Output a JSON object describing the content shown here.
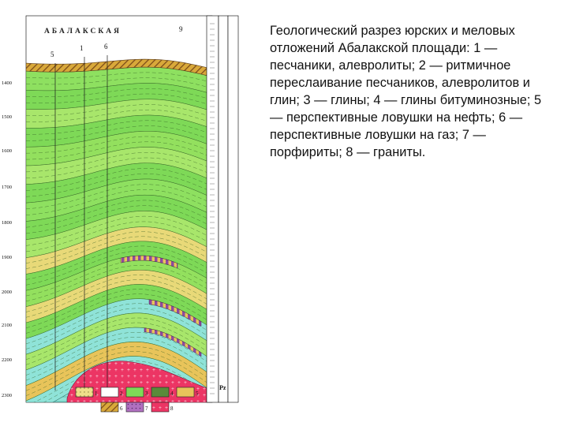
{
  "figure": {
    "area_name": "АБАЛАКСКАЯ",
    "top_markers": [
      {
        "label": "5"
      },
      {
        "label": "1"
      },
      {
        "label": "6"
      },
      {
        "label": "9"
      }
    ],
    "depth_labels": [
      "1400",
      "1500",
      "1600",
      "1700",
      "1800",
      "1900",
      "2000",
      "2100",
      "2200",
      "2300"
    ],
    "column_label": "Pz",
    "legend": [
      {
        "label": "1",
        "pattern": "sand"
      },
      {
        "label": "2",
        "pattern": "lines"
      },
      {
        "label": "3",
        "pattern": "green"
      },
      {
        "label": "4",
        "pattern": "dark"
      },
      {
        "label": "5",
        "pattern": "trap"
      },
      {
        "label": "6",
        "pattern": "hatch"
      },
      {
        "label": "7",
        "pattern": "porph"
      },
      {
        "label": "8",
        "pattern": "granite"
      }
    ],
    "colors": {
      "green": "#7ed957",
      "light_green": "#a8e66b",
      "cyan": "#8fe3d8",
      "sand": "#e8d978",
      "orange": "#d9a93a",
      "purple": "#a05cb0",
      "red": "#e8305a",
      "brown": "#a06a2a"
    }
  },
  "caption": "Геологический разрез юрских и меловых отложений Абалакской площади: 1 — песчаники, алевролиты; 2 — ритмичное переслаивание песчаников, алевролитов и глин; 3 — глины; 4 — глины битуминозные; 5 — перспективные ловушки на нефть; 6 — перспективные ловушки на газ; 7 — порфириты; 8 — граниты."
}
